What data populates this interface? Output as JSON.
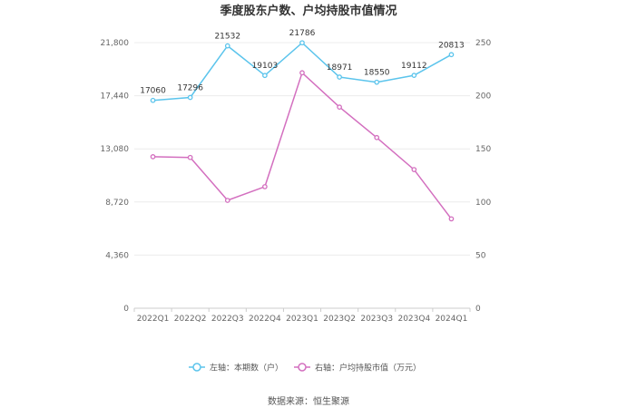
{
  "chart_data": {
    "type": "line",
    "title": "季度股东户数、户均持股市值情况",
    "categories": [
      "2022Q1",
      "2022Q2",
      "2022Q3",
      "2022Q4",
      "2023Q1",
      "2023Q2",
      "2023Q3",
      "2023Q4",
      "2024Q1"
    ],
    "left_axis": {
      "ylim": [
        0,
        21800
      ],
      "ticks": [
        "0",
        "4,360",
        "8,720",
        "13,080",
        "17,440",
        "21,800"
      ]
    },
    "right_axis": {
      "ylim": [
        0,
        250
      ],
      "ticks": [
        "0",
        "50",
        "100",
        "150",
        "200",
        "250"
      ]
    },
    "series": [
      {
        "name": "左轴：本期数（户）",
        "axis": "left",
        "color": "#5bc4ec",
        "values": [
          17060,
          17296,
          21532,
          19103,
          21786,
          18971,
          18550,
          19112,
          20813
        ],
        "labels": [
          "17060",
          "17296",
          "21532",
          "19103",
          "21786",
          "18971",
          "18550",
          "19112",
          "20813"
        ]
      },
      {
        "name": "右轴：户均持股市值（万元）",
        "axis": "right",
        "color": "#d36fbf",
        "values": [
          142.6,
          141.9,
          101.5,
          114.4,
          221.6,
          189.3,
          160.6,
          130.5,
          84.1
        ]
      }
    ],
    "grid": true,
    "legend_position": "bottom",
    "source": "数据来源：恒生聚源"
  }
}
